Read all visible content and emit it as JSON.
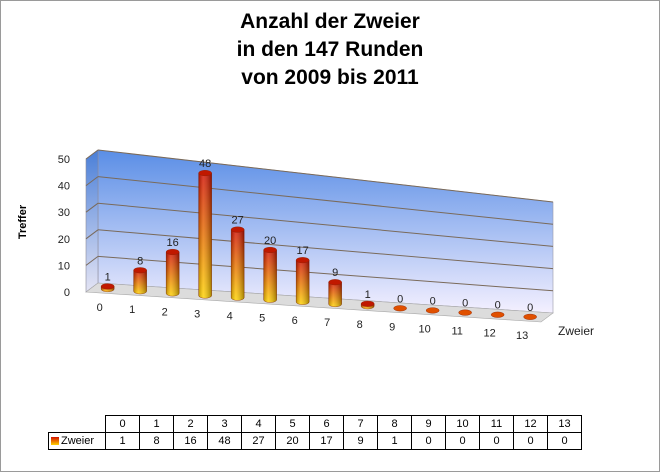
{
  "title": {
    "line1": "Anzahl der Zweier",
    "line2": "in den 147 Runden",
    "line3": "von 2009 bis 2011"
  },
  "chart_data": {
    "type": "bar",
    "title": "Anzahl der Zweier in den 147 Runden von 2009 bis 2011",
    "xlabel": "Zweier",
    "ylabel": "Treffer",
    "categories": [
      "0",
      "1",
      "2",
      "3",
      "4",
      "5",
      "6",
      "7",
      "8",
      "9",
      "10",
      "11",
      "12",
      "13"
    ],
    "series": [
      {
        "name": "Zweier",
        "values": [
          1,
          8,
          16,
          48,
          27,
          20,
          17,
          9,
          1,
          0,
          0,
          0,
          0,
          0
        ]
      }
    ],
    "ylim": [
      0,
      50
    ],
    "yticks": [
      "0",
      "10",
      "20",
      "30",
      "40",
      "50"
    ],
    "grid": true,
    "legend": "data table",
    "colors": {
      "bar_top": "#d21000",
      "bar_bottom": "#ffd200",
      "wall_top": "#5a8ee6",
      "wall_bottom": "#f4f0ff"
    }
  },
  "table": {
    "row_label": "Zweier"
  }
}
